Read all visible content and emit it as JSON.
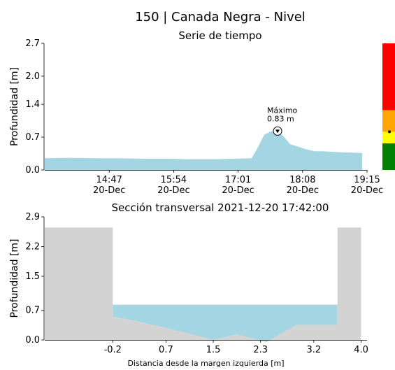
{
  "header": {
    "title": "150 | Canada Negra - Nivel",
    "subtitle": "Serie de tiempo"
  },
  "chart_data": [
    {
      "type": "area",
      "title": "Serie de tiempo",
      "ylabel": "Profundidad [m]",
      "ylim": [
        0,
        2.7
      ],
      "yticks": [
        "0.0",
        "0.7",
        "1.4",
        "2.0",
        "2.7"
      ],
      "x_ticks": [
        {
          "time": "14:47",
          "date": "20-Dec"
        },
        {
          "time": "15:54",
          "date": "20-Dec"
        },
        {
          "time": "17:01",
          "date": "20-Dec"
        },
        {
          "time": "18:08",
          "date": "20-Dec"
        },
        {
          "time": "19:15",
          "date": "20-Dec"
        }
      ],
      "x_range": [
        "2021-12-20 13:40",
        "2021-12-20 19:15"
      ],
      "series": [
        {
          "color": "#a3d5e2",
          "x": [
            "13:40",
            "14:05",
            "14:30",
            "14:55",
            "15:20",
            "15:45",
            "16:10",
            "16:35",
            "17:00",
            "17:15",
            "17:22",
            "17:28",
            "17:35",
            "17:42",
            "17:48",
            "17:55",
            "18:00",
            "18:10",
            "18:20",
            "18:30",
            "18:45",
            "19:00",
            "19:10"
          ],
          "values": [
            0.25,
            0.26,
            0.25,
            0.25,
            0.24,
            0.24,
            0.23,
            0.23,
            0.24,
            0.25,
            0.5,
            0.75,
            0.82,
            0.83,
            0.72,
            0.55,
            0.52,
            0.45,
            0.4,
            0.4,
            0.38,
            0.37,
            0.36
          ]
        }
      ],
      "annotation": {
        "x": "17:42",
        "value": 0.83,
        "label_line1": "Máximo",
        "label_line2": "0.83 m"
      },
      "alert_scale": {
        "bands": [
          {
            "from": 0.0,
            "to": 0.58,
            "color": "#008000"
          },
          {
            "from": 0.58,
            "to": 0.83,
            "color": "#ffff00"
          },
          {
            "from": 0.83,
            "to": 1.3,
            "color": "#ffa500"
          },
          {
            "from": 1.3,
            "to": 2.75,
            "color": "#ff0000"
          }
        ],
        "current_value": 0.83
      }
    },
    {
      "type": "area",
      "title": "Sección transversal 2021-12-20 17:42:00",
      "xlabel": "Distancia desde la margen izquierda [m]",
      "ylabel": "Profundidad [m]",
      "xlim": [
        -1.35,
        4.1
      ],
      "ylim": [
        0,
        2.9
      ],
      "xticks": [
        "-0.2",
        "0.7",
        "1.5",
        "2.3",
        "3.2",
        "4.0"
      ],
      "yticks": [
        "0.0",
        "0.7",
        "1.5",
        "2.2",
        "2.9"
      ],
      "water_level": 0.83,
      "water_color": "#a3d5e2",
      "ground_color": "#d3d3d3",
      "bed_profile": {
        "x": [
          -1.35,
          -0.2,
          -0.2,
          0.2,
          0.7,
          1.0,
          1.5,
          1.9,
          2.4,
          2.9,
          3.6,
          3.6,
          4.0
        ],
        "y": [
          2.65,
          2.65,
          0.55,
          0.44,
          0.28,
          0.18,
          0.0,
          0.13,
          -0.05,
          0.35,
          0.35,
          2.65,
          2.65
        ]
      }
    }
  ]
}
